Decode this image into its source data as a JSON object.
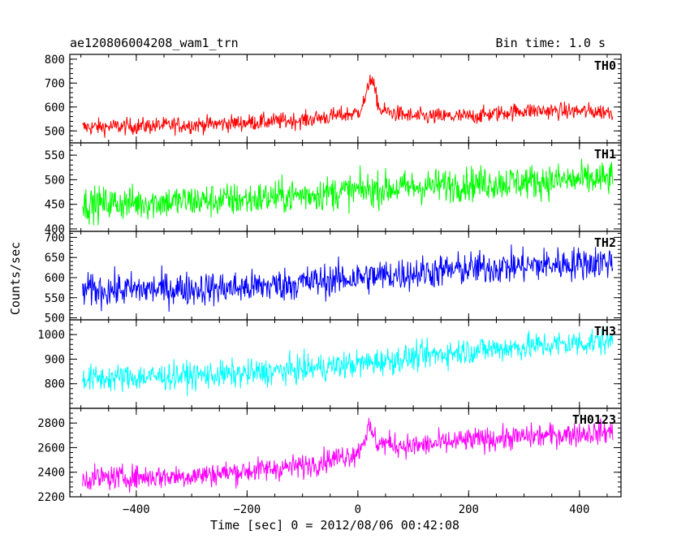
{
  "header": {
    "title": "ae120806004208_wam1_trn",
    "bin_time": "Bin time: 1.0 s"
  },
  "chart_data": {
    "type": "line",
    "xlabel": "Time [sec] 0 = 2012/08/06 00:42:08",
    "ylabel": "Counts/sec",
    "xlim": [
      -520,
      475
    ],
    "x_ticks": [
      -400,
      -200,
      0,
      200,
      400
    ],
    "x_range": [
      -497,
      460
    ],
    "x_step": 1,
    "panels": [
      {
        "name": "TH0",
        "color": "#ff0000",
        "ylim": [
          450,
          820
        ],
        "yticks": [
          500,
          600,
          700,
          800
        ],
        "trend": [
          [
            -497,
            515
          ],
          [
            -300,
            525
          ],
          [
            -100,
            545
          ],
          [
            0,
            575
          ],
          [
            15,
            640
          ],
          [
            22,
            730
          ],
          [
            28,
            690
          ],
          [
            40,
            585
          ],
          [
            100,
            560
          ],
          [
            200,
            560
          ],
          [
            300,
            585
          ],
          [
            460,
            580
          ]
        ],
        "noise": 25
      },
      {
        "name": "TH1",
        "color": "#00ff00",
        "ylim": [
          395,
          575
        ],
        "yticks": [
          400,
          450,
          500,
          550
        ],
        "trend": [
          [
            -497,
            450
          ],
          [
            -200,
            460
          ],
          [
            0,
            478
          ],
          [
            200,
            492
          ],
          [
            460,
            502
          ]
        ],
        "noise": 25
      },
      {
        "name": "TH2",
        "color": "#0000ff",
        "ylim": [
          495,
          715
        ],
        "yticks": [
          500,
          550,
          600,
          650,
          700
        ],
        "trend": [
          [
            -497,
            568
          ],
          [
            -200,
            575
          ],
          [
            0,
            600
          ],
          [
            200,
            622
          ],
          [
            460,
            640
          ]
        ],
        "noise": 30
      },
      {
        "name": "TH3",
        "color": "#00ffff",
        "ylim": [
          700,
          1060
        ],
        "yticks": [
          800,
          900,
          1000
        ],
        "trend": [
          [
            -497,
            820
          ],
          [
            -200,
            840
          ],
          [
            0,
            880
          ],
          [
            200,
            935
          ],
          [
            460,
            975
          ]
        ],
        "noise": 40
      },
      {
        "name": "TH0123",
        "color": "#ff00ff",
        "ylim": [
          2200,
          2920
        ],
        "yticks": [
          2200,
          2400,
          2600,
          2800
        ],
        "trend": [
          [
            -497,
            2350
          ],
          [
            -300,
            2370
          ],
          [
            -100,
            2450
          ],
          [
            0,
            2560
          ],
          [
            20,
            2760
          ],
          [
            35,
            2640
          ],
          [
            100,
            2610
          ],
          [
            200,
            2660
          ],
          [
            460,
            2730
          ]
        ],
        "noise": 70
      }
    ]
  }
}
